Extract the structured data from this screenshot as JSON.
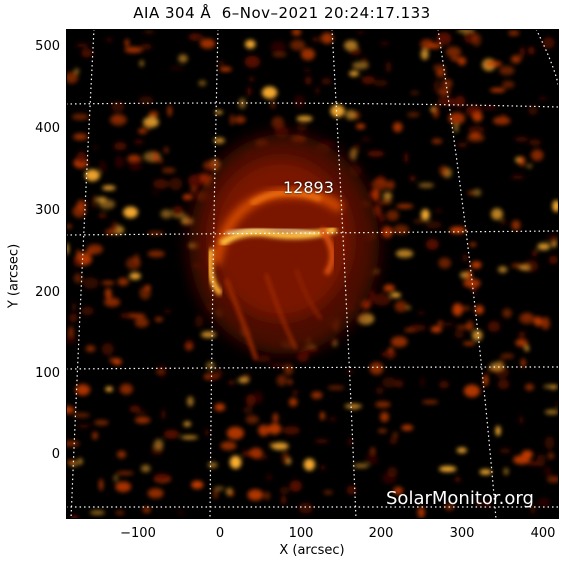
{
  "title": "AIA 304 Å  6–Nov–2021 20:24:17.133",
  "axes": {
    "x_label": "X (arcsec)",
    "y_label": "Y (arcsec)",
    "x_ticks": [
      "−100",
      "0",
      "100",
      "200",
      "300",
      "400"
    ],
    "y_ticks": [
      "500",
      "400",
      "300",
      "200",
      "100",
      "0"
    ]
  },
  "region_label": "12893",
  "credit": "SolarMonitor.org",
  "colors": {
    "background": "#000000",
    "emission_dim": "#5a0d00",
    "emission_mid": "#c23a00",
    "emission_bright": "#ffb030",
    "emission_peak": "#fff2c0",
    "grid": "#ffffff"
  }
}
